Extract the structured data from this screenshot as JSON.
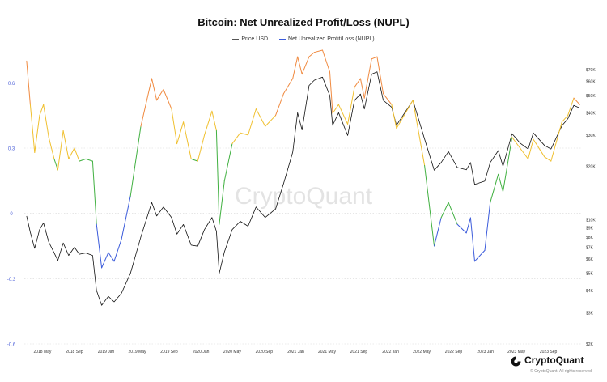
{
  "chart_data": {
    "type": "line",
    "title": "Bitcoin: Net Unrealized Profit/Loss (NUPL)",
    "legend_position": "top-center",
    "grid": "horizontal dotted",
    "colors": {
      "price": "#111111",
      "nupl_capitulation": "#3b5bdb",
      "nupl_hope_fear": "#40b040",
      "nupl_optimism_anxiety": "#f0c030",
      "nupl_belief_denial": "#f08a40",
      "gridline": "#d8d8d8"
    },
    "x_ticks": [
      "2018 May",
      "2018 Sep",
      "2019 Jan",
      "2019 May",
      "2019 Sep",
      "2020 Jan",
      "2020 May",
      "2020 Sep",
      "2021 Jan",
      "2021 May",
      "2021 Sep",
      "2022 Jan",
      "2022 May",
      "2022 Sep",
      "2023 Jan",
      "2023 May",
      "2023 Sep"
    ],
    "left_axis": {
      "ticks": [
        "0.6",
        "0.3",
        "0",
        "-0.3",
        "-0.6"
      ],
      "values": [
        0.6,
        0.3,
        0,
        -0.3,
        -0.6
      ],
      "ylim": [
        -0.6,
        0.75
      ]
    },
    "right_axis": {
      "scale": "log",
      "ticks": [
        "$70K",
        "$60K",
        "$50K",
        "$40K",
        "$30K",
        "$20K",
        "$10K",
        "$9K",
        "$8K",
        "$7K",
        "$6K",
        "$5K",
        "$4K",
        "$3K",
        "$2K"
      ],
      "values": [
        70000,
        60000,
        50000,
        40000,
        30000,
        20000,
        10000,
        9000,
        8000,
        7000,
        6000,
        5000,
        4000,
        3000,
        2000
      ],
      "ylim": [
        2000,
        90000
      ]
    },
    "series": [
      {
        "name": "Price USD",
        "color": "#111111",
        "points": [
          [
            "2018-03-01",
            10500
          ],
          [
            "2018-03-15",
            8500
          ],
          [
            "2018-04-01",
            6900
          ],
          [
            "2018-04-20",
            8800
          ],
          [
            "2018-05-05",
            9600
          ],
          [
            "2018-05-25",
            7500
          ],
          [
            "2018-06-15",
            6500
          ],
          [
            "2018-06-29",
            5900
          ],
          [
            "2018-07-20",
            7400
          ],
          [
            "2018-08-10",
            6300
          ],
          [
            "2018-09-01",
            7000
          ],
          [
            "2018-09-20",
            6400
          ],
          [
            "2018-10-15",
            6500
          ],
          [
            "2018-11-10",
            6300
          ],
          [
            "2018-11-25",
            4000
          ],
          [
            "2018-12-15",
            3300
          ],
          [
            "2019-01-10",
            3700
          ],
          [
            "2019-02-01",
            3450
          ],
          [
            "2019-03-01",
            3850
          ],
          [
            "2019-04-05",
            5000
          ],
          [
            "2019-05-15",
            8000
          ],
          [
            "2019-06-26",
            12500
          ],
          [
            "2019-07-15",
            10500
          ],
          [
            "2019-08-10",
            11800
          ],
          [
            "2019-09-10",
            10300
          ],
          [
            "2019-10-01",
            8300
          ],
          [
            "2019-10-26",
            9400
          ],
          [
            "2019-11-25",
            7200
          ],
          [
            "2019-12-20",
            7100
          ],
          [
            "2020-01-15",
            8800
          ],
          [
            "2020-02-13",
            10300
          ],
          [
            "2020-03-01",
            8600
          ],
          [
            "2020-03-12",
            5000
          ],
          [
            "2020-04-01",
            6600
          ],
          [
            "2020-05-01",
            8800
          ],
          [
            "2020-06-01",
            9800
          ],
          [
            "2020-07-01",
            9200
          ],
          [
            "2020-08-01",
            11800
          ],
          [
            "2020-09-05",
            10300
          ],
          [
            "2020-10-15",
            11500
          ],
          [
            "2020-11-15",
            16000
          ],
          [
            "2020-12-20",
            24000
          ],
          [
            "2021-01-08",
            40000
          ],
          [
            "2021-01-25",
            32000
          ],
          [
            "2021-02-21",
            57000
          ],
          [
            "2021-03-13",
            61000
          ],
          [
            "2021-04-14",
            63500
          ],
          [
            "2021-05-12",
            50000
          ],
          [
            "2021-05-23",
            34000
          ],
          [
            "2021-06-15",
            40000
          ],
          [
            "2021-07-20",
            29800
          ],
          [
            "2021-08-15",
            47000
          ],
          [
            "2021-09-07",
            51000
          ],
          [
            "2021-09-22",
            42000
          ],
          [
            "2021-10-20",
            66000
          ],
          [
            "2021-11-10",
            68000
          ],
          [
            "2021-12-04",
            47000
          ],
          [
            "2022-01-05",
            43000
          ],
          [
            "2022-01-24",
            34000
          ],
          [
            "2022-03-28",
            47000
          ],
          [
            "2022-05-12",
            28500
          ],
          [
            "2022-06-18",
            19000
          ],
          [
            "2022-07-15",
            21000
          ],
          [
            "2022-08-12",
            24200
          ],
          [
            "2022-09-15",
            19700
          ],
          [
            "2022-10-20",
            19100
          ],
          [
            "2022-11-05",
            21000
          ],
          [
            "2022-11-21",
            15800
          ],
          [
            "2022-12-30",
            16500
          ],
          [
            "2023-01-20",
            21000
          ],
          [
            "2023-02-20",
            24500
          ],
          [
            "2023-03-10",
            20000
          ],
          [
            "2023-04-14",
            30500
          ],
          [
            "2023-05-15",
            27000
          ],
          [
            "2023-06-15",
            25000
          ],
          [
            "2023-07-05",
            30800
          ],
          [
            "2023-08-17",
            26200
          ],
          [
            "2023-09-11",
            25000
          ],
          [
            "2023-10-23",
            33800
          ],
          [
            "2023-11-15",
            37000
          ],
          [
            "2023-12-08",
            44000
          ],
          [
            "2023-12-31",
            42500
          ]
        ]
      },
      {
        "name": "Net Unrealized Profit/Loss (NUPL)",
        "color": "#3b5bdb",
        "points": [
          [
            "2018-03-01",
            0.7
          ],
          [
            "2018-03-15",
            0.5
          ],
          [
            "2018-04-01",
            0.28
          ],
          [
            "2018-04-20",
            0.45
          ],
          [
            "2018-05-05",
            0.5
          ],
          [
            "2018-05-25",
            0.35
          ],
          [
            "2018-06-15",
            0.25
          ],
          [
            "2018-06-29",
            0.2
          ],
          [
            "2018-07-20",
            0.38
          ],
          [
            "2018-08-10",
            0.25
          ],
          [
            "2018-09-01",
            0.3
          ],
          [
            "2018-09-20",
            0.24
          ],
          [
            "2018-10-15",
            0.25
          ],
          [
            "2018-11-10",
            0.24
          ],
          [
            "2018-11-25",
            -0.05
          ],
          [
            "2018-12-15",
            -0.25
          ],
          [
            "2019-01-10",
            -0.18
          ],
          [
            "2019-02-01",
            -0.22
          ],
          [
            "2019-03-01",
            -0.12
          ],
          [
            "2019-04-05",
            0.08
          ],
          [
            "2019-05-15",
            0.4
          ],
          [
            "2019-06-26",
            0.62
          ],
          [
            "2019-07-15",
            0.52
          ],
          [
            "2019-08-10",
            0.57
          ],
          [
            "2019-09-10",
            0.48
          ],
          [
            "2019-10-01",
            0.32
          ],
          [
            "2019-10-26",
            0.42
          ],
          [
            "2019-11-25",
            0.25
          ],
          [
            "2019-12-20",
            0.24
          ],
          [
            "2020-01-15",
            0.36
          ],
          [
            "2020-02-13",
            0.47
          ],
          [
            "2020-03-01",
            0.38
          ],
          [
            "2020-03-12",
            -0.05
          ],
          [
            "2020-04-01",
            0.15
          ],
          [
            "2020-05-01",
            0.32
          ],
          [
            "2020-06-01",
            0.37
          ],
          [
            "2020-07-01",
            0.36
          ],
          [
            "2020-08-01",
            0.48
          ],
          [
            "2020-09-05",
            0.4
          ],
          [
            "2020-10-15",
            0.45
          ],
          [
            "2020-11-15",
            0.55
          ],
          [
            "2020-12-20",
            0.62
          ],
          [
            "2021-01-08",
            0.72
          ],
          [
            "2021-01-25",
            0.64
          ],
          [
            "2021-02-21",
            0.72
          ],
          [
            "2021-03-13",
            0.74
          ],
          [
            "2021-04-14",
            0.75
          ],
          [
            "2021-05-12",
            0.65
          ],
          [
            "2021-05-23",
            0.46
          ],
          [
            "2021-06-15",
            0.5
          ],
          [
            "2021-07-20",
            0.41
          ],
          [
            "2021-08-15",
            0.58
          ],
          [
            "2021-09-07",
            0.62
          ],
          [
            "2021-09-22",
            0.53
          ],
          [
            "2021-10-20",
            0.71
          ],
          [
            "2021-11-10",
            0.72
          ],
          [
            "2021-12-04",
            0.55
          ],
          [
            "2022-01-05",
            0.5
          ],
          [
            "2022-01-24",
            0.39
          ],
          [
            "2022-03-28",
            0.52
          ],
          [
            "2022-05-12",
            0.22
          ],
          [
            "2022-06-18",
            -0.15
          ],
          [
            "2022-07-15",
            -0.02
          ],
          [
            "2022-08-12",
            0.05
          ],
          [
            "2022-09-15",
            -0.05
          ],
          [
            "2022-10-20",
            -0.09
          ],
          [
            "2022-11-05",
            -0.02
          ],
          [
            "2022-11-21",
            -0.22
          ],
          [
            "2022-12-30",
            -0.17
          ],
          [
            "2023-01-20",
            0.05
          ],
          [
            "2023-02-20",
            0.18
          ],
          [
            "2023-03-10",
            0.1
          ],
          [
            "2023-04-14",
            0.35
          ],
          [
            "2023-05-15",
            0.3
          ],
          [
            "2023-06-15",
            0.25
          ],
          [
            "2023-07-05",
            0.34
          ],
          [
            "2023-08-17",
            0.26
          ],
          [
            "2023-09-11",
            0.24
          ],
          [
            "2023-10-23",
            0.42
          ],
          [
            "2023-11-15",
            0.45
          ],
          [
            "2023-12-08",
            0.53
          ],
          [
            "2023-12-31",
            0.5
          ]
        ]
      }
    ],
    "watermark": "CryptoQuant"
  },
  "brand": {
    "name": "CryptoQuant",
    "copyright": "© CryptoQuant. All rights reserved."
  }
}
